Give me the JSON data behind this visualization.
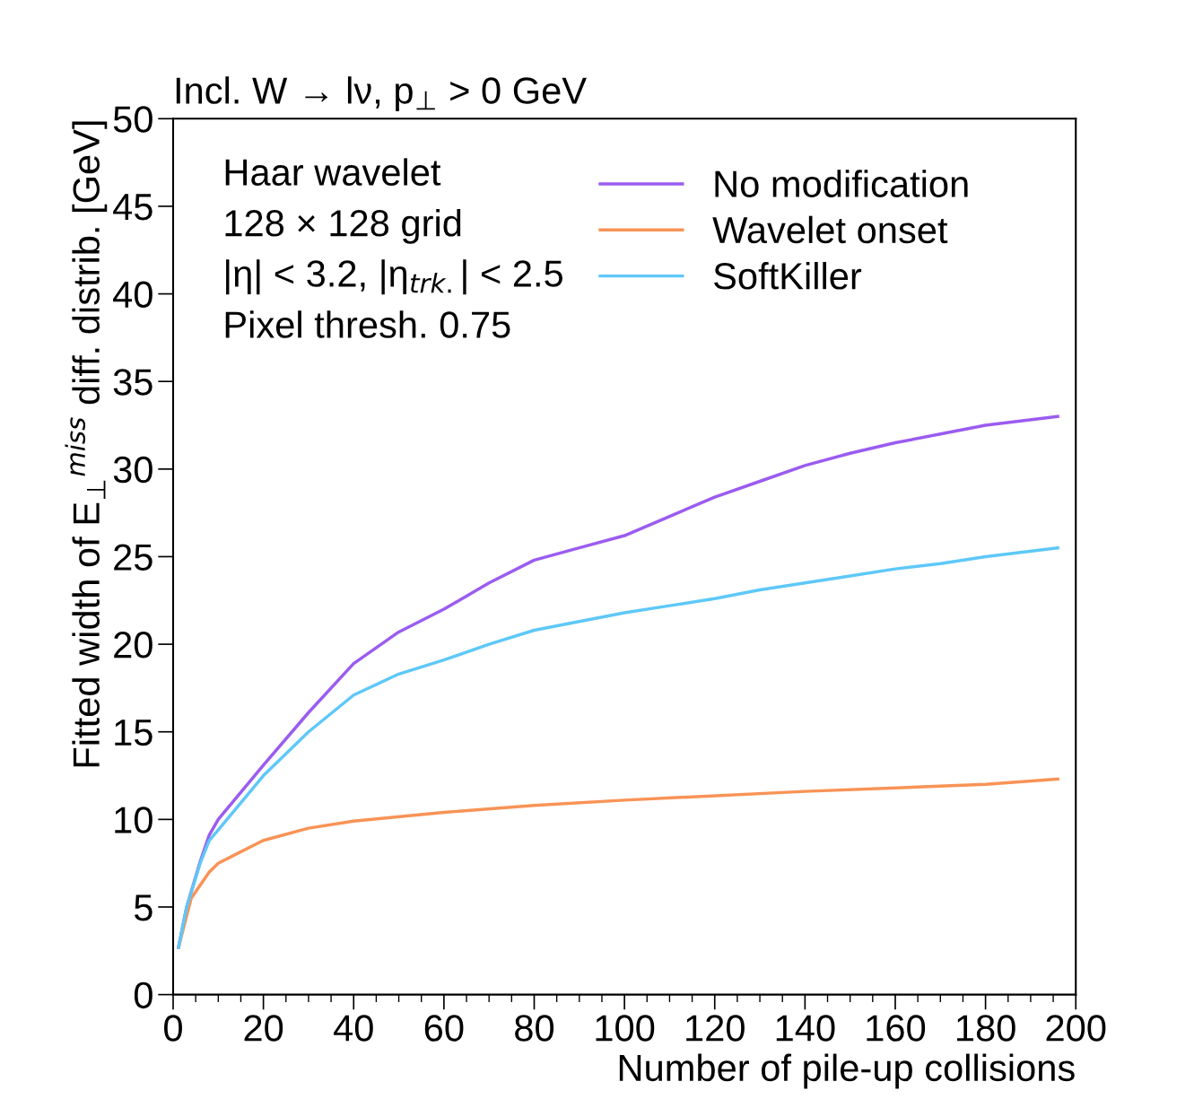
{
  "chart_data": {
    "type": "line",
    "title": "Incl. W → lν, p$_{⊥}$ > 0 GeV",
    "xlabel": "Number of pile-up collisions",
    "ylabel": "Fitted width of E$_{⊥}$$^{miss}$ diff. distrib. [GeV]",
    "xlim": [
      0,
      200
    ],
    "ylim": [
      0,
      50
    ],
    "xticks": [
      0,
      20,
      40,
      60,
      80,
      100,
      120,
      140,
      160,
      180,
      200
    ],
    "yticks": [
      0,
      5,
      10,
      15,
      20,
      25,
      30,
      35,
      40,
      45,
      50
    ],
    "grid": false,
    "legend": "top right",
    "line_style": "solid",
    "marker": "none",
    "annotations": [
      "Haar wavelet",
      "128 × 128 grid",
      "|η| < 3.2, |η$_{trk.}$| < 2.5",
      "Pixel thresh. 0.75"
    ],
    "series": [
      {
        "name": "No modification",
        "color": "#9b5cf0",
        "x": [
          1.2,
          3,
          6,
          8,
          10,
          20,
          30,
          40,
          50,
          60,
          70,
          80,
          90,
          100,
          110,
          120,
          130,
          140,
          150,
          160,
          170,
          180,
          196
        ],
        "values": [
          2.7,
          5.0,
          7.6,
          9.1,
          10.0,
          13.1,
          16.1,
          18.9,
          20.7,
          22.0,
          23.5,
          24.8,
          25.5,
          26.2,
          27.3,
          28.4,
          29.3,
          30.2,
          30.9,
          31.5,
          32.0,
          32.5,
          33.0
        ]
      },
      {
        "name": "Wavelet onset",
        "color": "#f89356",
        "x": [
          1.2,
          4,
          8,
          10,
          20,
          30,
          40,
          60,
          80,
          100,
          140,
          180,
          196
        ],
        "values": [
          2.7,
          5.5,
          7.0,
          7.5,
          8.8,
          9.5,
          9.9,
          10.4,
          10.8,
          11.1,
          11.6,
          12.0,
          12.3
        ]
      },
      {
        "name": "SoftKiller",
        "color": "#5ec8f8",
        "x": [
          1.2,
          3,
          6,
          8,
          10,
          20,
          30,
          40,
          50,
          60,
          70,
          80,
          90,
          100,
          110,
          120,
          130,
          140,
          150,
          160,
          170,
          180,
          196
        ],
        "values": [
          2.7,
          5.0,
          7.5,
          8.8,
          9.4,
          12.5,
          15.0,
          17.1,
          18.3,
          19.1,
          20.0,
          20.8,
          21.3,
          21.8,
          22.2,
          22.6,
          23.1,
          23.5,
          23.9,
          24.3,
          24.6,
          25.0,
          25.5
        ]
      }
    ]
  }
}
